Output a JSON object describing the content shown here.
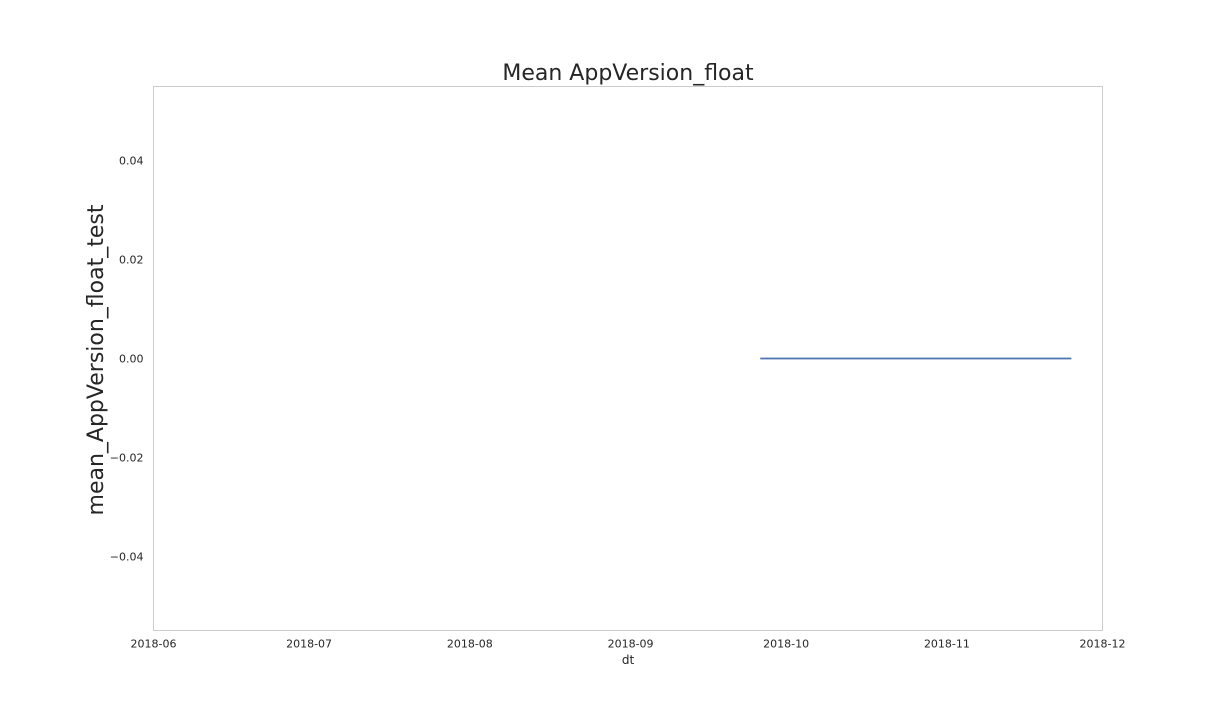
{
  "chart_data": {
    "type": "line",
    "title": "Mean AppVersion_float",
    "xlabel": "dt",
    "ylabel": "mean_AppVersion_float_test",
    "x_tick_labels": [
      "2018-06",
      "2018-07",
      "2018-08",
      "2018-09",
      "2018-10",
      "2018-11",
      "2018-12"
    ],
    "x_ticks": [
      "2018-06-01",
      "2018-07-01",
      "2018-08-01",
      "2018-09-01",
      "2018-10-01",
      "2018-11-01",
      "2018-12-01"
    ],
    "y_ticks": [
      0.04,
      0.02,
      0.0,
      -0.02,
      -0.04
    ],
    "y_tick_labels": [
      "0.04",
      "0.02",
      "0.00",
      "−0.02",
      "−0.04"
    ],
    "xlim": [
      "2018-06-01",
      "2018-12-01"
    ],
    "ylim": [
      -0.055,
      0.055
    ],
    "grid": false,
    "series": [
      {
        "color": "#4c72b0",
        "x": [
          "2018-09-26",
          "2018-11-25"
        ],
        "y": [
          0.0,
          0.0
        ]
      }
    ]
  }
}
